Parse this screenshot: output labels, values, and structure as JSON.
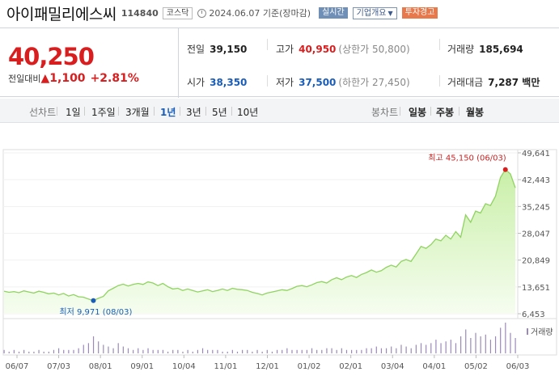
{
  "header": {
    "name": "아이패밀리에스씨",
    "code": "114840",
    "market": "코스닥",
    "date_text": "2024.06.07 기준(장마감)",
    "live_label": "실시간",
    "company_info_label": "기업개요",
    "warning_label": "투자경고",
    "icons": {
      "clock": "clock-icon",
      "dropdown": "chevron-down-icon"
    }
  },
  "price": {
    "current": "40,250",
    "change_label": "전일대비",
    "change_arrow": "▲",
    "change_value": "1,100",
    "change_pct": "+2.81%"
  },
  "stats": {
    "prev_close_label": "전일",
    "prev_close": "39,150",
    "high_label": "고가",
    "high": "40,950",
    "upper_limit": "(상한가 50,800)",
    "volume_label": "거래량",
    "volume": "185,694",
    "open_label": "시가",
    "open": "38,350",
    "low_label": "저가",
    "low": "37,500",
    "lower_limit": "(하한가 27,450)",
    "amount_label": "거래대금",
    "amount": "7,287 백만"
  },
  "periods": {
    "line_label": "선차트",
    "items": [
      "1일",
      "1주일",
      "3개월",
      "1년",
      "3년",
      "5년",
      "10년"
    ],
    "selected": "1년",
    "candle_label": "봉차트",
    "candle_items": [
      "일봉",
      "주봉",
      "월봉"
    ]
  },
  "colors": {
    "up": "#d81e1e",
    "down": "#1a5db8",
    "line": "#8fd360",
    "fill": "#e6f7d6"
  },
  "chart_data": {
    "type": "area",
    "y_ticks": [
      49641,
      42443,
      35245,
      28047,
      20849,
      13651,
      6453
    ],
    "y_tick_labels": [
      "49,641",
      "42,443",
      "35,245",
      "28,047",
      "20,849",
      "13,651",
      "6,453"
    ],
    "x_labels": [
      "06/07",
      "07/03",
      "08/01",
      "09/01",
      "10/04",
      "11/01",
      "12/01",
      "01/02",
      "02/01",
      "03/04",
      "04/01",
      "05/02",
      "06/03"
    ],
    "ylim": [
      6453,
      49641
    ],
    "max_label": "최고 45,150 (06/03)",
    "min_label": "최저 9,971 (08/03)",
    "max_value": 45150,
    "min_value": 9971,
    "volume_label": "거래량",
    "series": [
      {
        "values": [
          12500,
          12200,
          12400,
          12100,
          12600,
          12300,
          12000,
          12500,
          12200,
          11800,
          12000,
          11500,
          11900,
          11200,
          11600,
          11000,
          10900,
          10400,
          9971,
          10600,
          11100,
          12600,
          13300,
          14000,
          14400,
          13900,
          14300,
          14600,
          14300,
          15000,
          14700,
          14000,
          14600,
          13700,
          13100,
          13300,
          12700,
          13100,
          12700,
          12300,
          12600,
          12900,
          12400,
          12700,
          13100,
          12700,
          13300,
          13000,
          12900,
          12700,
          12200,
          11900,
          11500,
          12000,
          12300,
          12600,
          12900,
          12700,
          13200,
          13800,
          14000,
          13700,
          14200,
          14800,
          15100,
          14700,
          15600,
          16100,
          15600,
          16300,
          16700,
          16200,
          17000,
          17500,
          18200,
          17600,
          18000,
          18900,
          19500,
          19000,
          20500,
          21000,
          20500,
          22500,
          24500,
          24000,
          25000,
          26500,
          26000,
          27500,
          26500,
          28500,
          27000,
          33000,
          31000,
          34000,
          33500,
          36000,
          35500,
          38000,
          43000,
          45150,
          44000,
          40250
        ]
      }
    ],
    "volume_values": [
      2,
      1,
      2,
      1,
      2,
      1,
      1,
      2,
      1,
      1,
      2,
      3,
      2,
      2,
      2,
      3,
      5,
      6,
      10,
      7,
      5,
      4,
      3,
      6,
      4,
      3,
      2,
      3,
      2,
      3,
      2,
      2,
      2,
      1,
      2,
      2,
      1,
      2,
      1,
      2,
      3,
      2,
      2,
      2,
      1,
      1,
      2,
      1,
      2,
      2,
      1,
      2,
      1,
      2,
      1,
      2,
      2,
      3,
      2,
      2,
      2,
      2,
      3,
      2,
      2,
      3,
      3,
      2,
      3,
      2,
      2,
      2,
      2,
      3,
      3,
      4,
      3,
      3,
      4,
      3,
      5,
      4,
      3,
      5,
      6,
      5,
      6,
      8,
      6,
      7,
      8,
      6,
      10,
      14,
      9,
      12,
      10,
      11,
      8,
      10,
      15,
      18,
      12,
      9
    ]
  }
}
